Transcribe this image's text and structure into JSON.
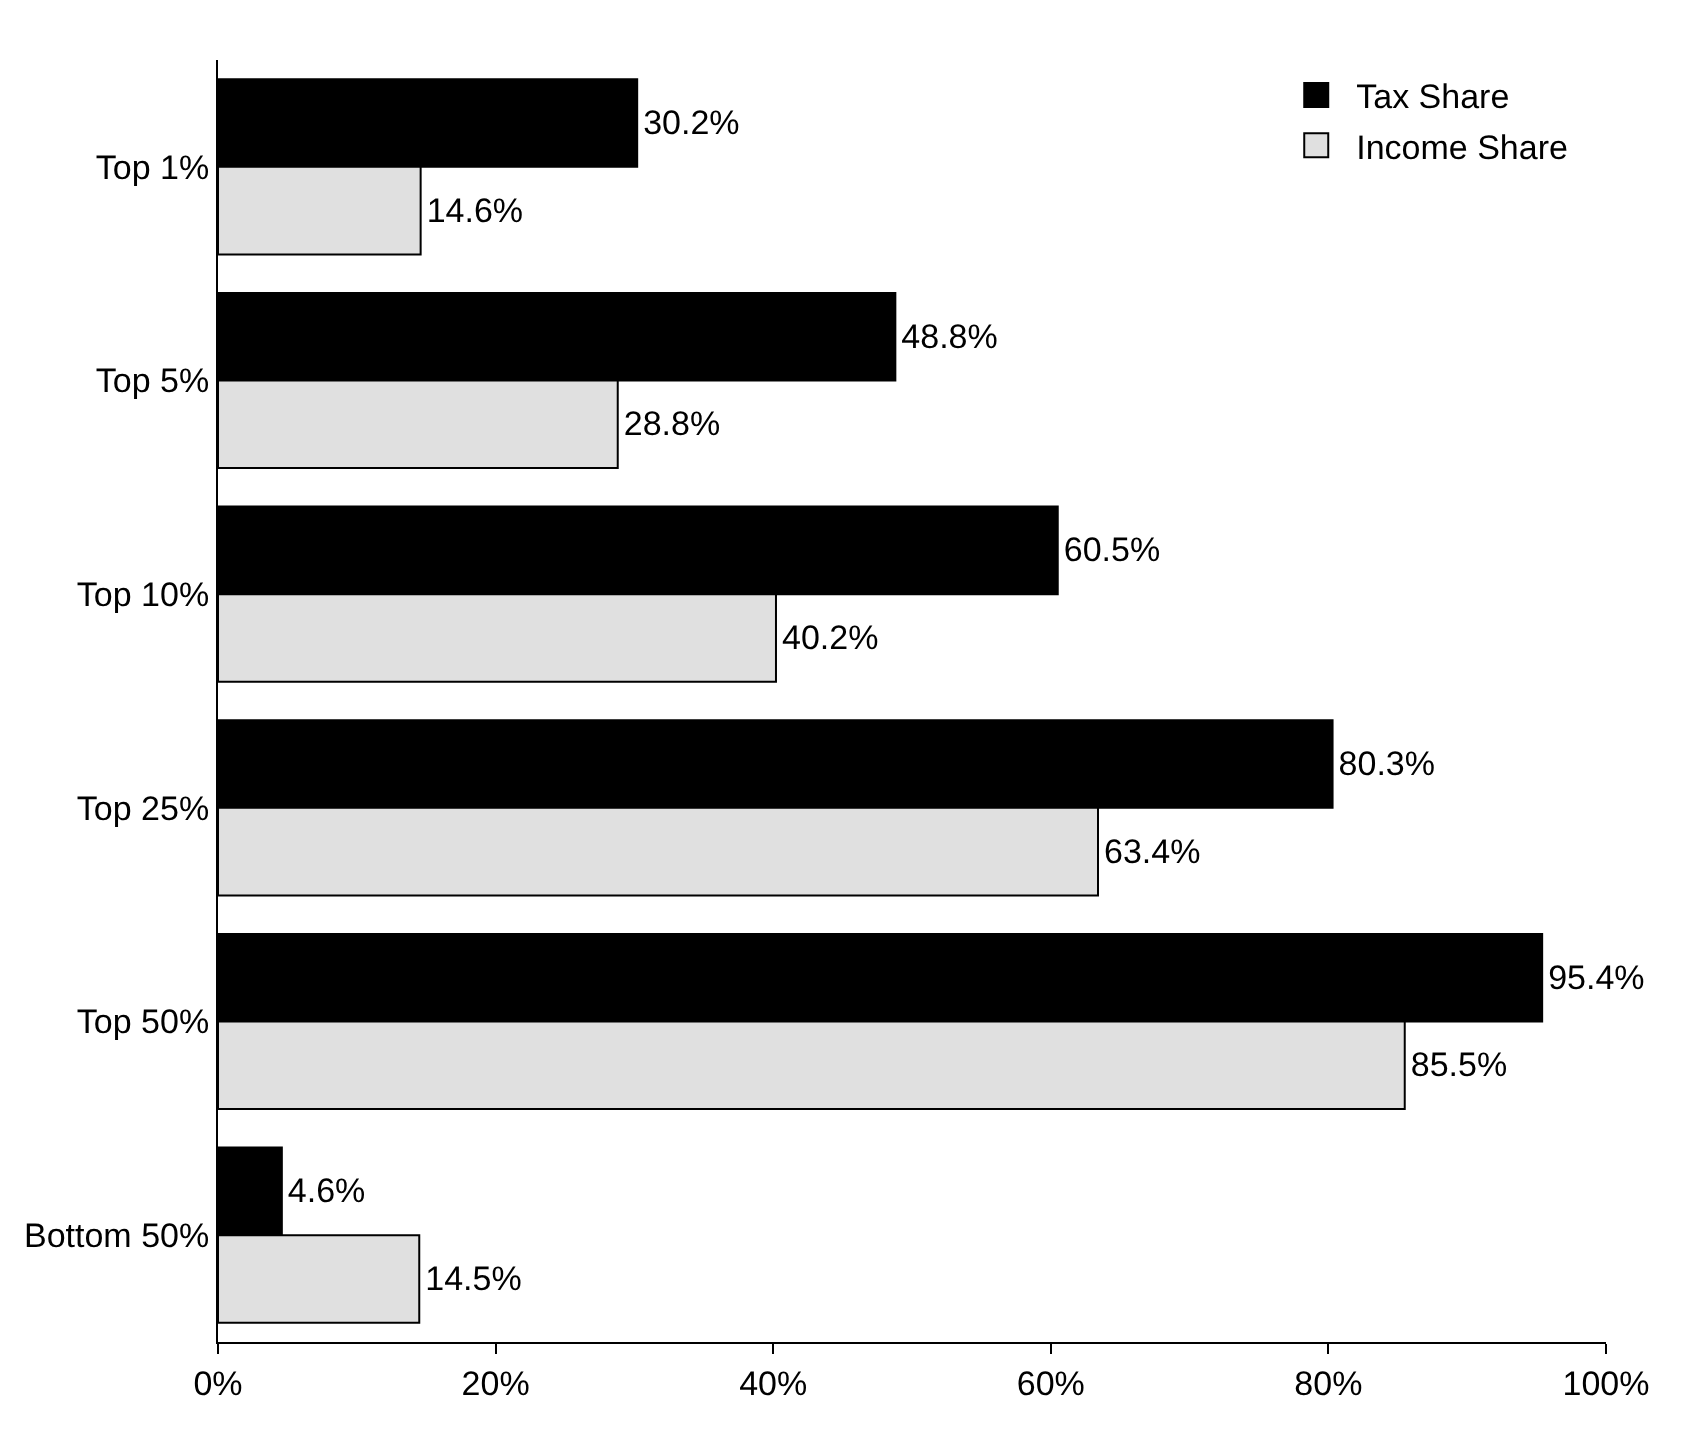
{
  "chart_data": {
    "type": "bar",
    "orientation": "horizontal",
    "categories": [
      "Top 1%",
      "Top 5%",
      "Top 10%",
      "Top 25%",
      "Top 50%",
      "Bottom 50%"
    ],
    "series": [
      {
        "name": "Tax Share",
        "color": "#000000",
        "values": [
          30.2,
          48.8,
          60.5,
          80.3,
          95.4,
          4.6
        ],
        "value_labels": [
          "30.2%",
          "48.8%",
          "60.5%",
          "80.3%",
          "95.4%",
          "4.6%"
        ]
      },
      {
        "name": "Income Share",
        "color": "#e0e0e0",
        "values": [
          14.6,
          28.8,
          40.2,
          63.4,
          85.5,
          14.5
        ],
        "value_labels": [
          "14.6%",
          "28.8%",
          "40.2%",
          "63.4%",
          "85.5%",
          "14.5%"
        ]
      }
    ],
    "xlim": [
      0,
      100
    ],
    "xticks": [
      {
        "value": 0,
        "label": "0%"
      },
      {
        "value": 20,
        "label": "20%"
      },
      {
        "value": 40,
        "label": "40%"
      },
      {
        "value": 60,
        "label": "60%"
      },
      {
        "value": 80,
        "label": "80%"
      },
      {
        "value": 100,
        "label": "100%"
      }
    ],
    "legend": "top right"
  }
}
